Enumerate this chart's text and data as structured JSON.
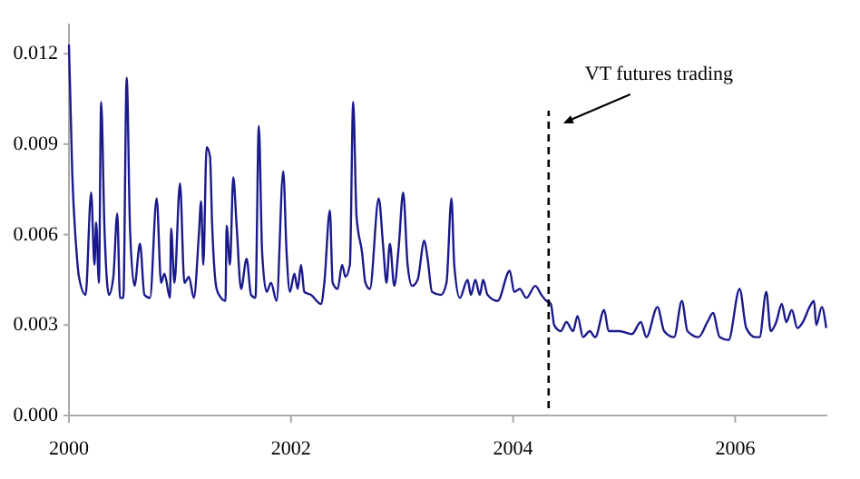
{
  "chart_data": {
    "type": "line",
    "xlim": [
      2000,
      2006.83
    ],
    "xticks": [
      2000,
      2002,
      2004,
      2006
    ],
    "ylim": [
      0,
      0.013
    ],
    "yticks": [
      {
        "value": 0,
        "label": "0.000"
      },
      {
        "value": 0.003,
        "label": "0.003"
      },
      {
        "value": 0.006,
        "label": "0.006"
      },
      {
        "value": 0.009,
        "label": "0.009"
      },
      {
        "value": 0.012,
        "label": "0.012"
      }
    ],
    "grid": false,
    "marker": "none",
    "line_style": "solid",
    "ref_lines": [
      {
        "axis": "x",
        "value": 2004.32,
        "label": "VT futures trading",
        "color": "#000000",
        "line_style": "dashed"
      }
    ],
    "series": [
      {
        "color": "#1a1a8c",
        "x": [
          2000.0,
          2000.03,
          2000.065,
          2000.09,
          2000.15,
          2000.2,
          2000.23,
          2000.245,
          2000.27,
          2000.29,
          2000.32,
          2000.36,
          2000.4,
          2000.435,
          2000.46,
          2000.49,
          2000.52,
          2000.55,
          2000.59,
          2000.64,
          2000.68,
          2000.73,
          2000.79,
          2000.83,
          2000.86,
          2000.91,
          2000.92,
          2000.95,
          2001.0,
          2001.04,
          2001.08,
          2001.125,
          2001.17,
          2001.19,
          2001.21,
          2001.24,
          2001.27,
          2001.29,
          2001.33,
          2001.37,
          2001.41,
          2001.42,
          2001.45,
          2001.48,
          2001.51,
          2001.55,
          2001.6,
          2001.64,
          2001.68,
          2001.71,
          2001.74,
          2001.78,
          2001.82,
          2001.87,
          2001.93,
          2001.96,
          2001.99,
          2002.03,
          2002.06,
          2002.09,
          2002.12,
          2002.18,
          2002.27,
          2002.3,
          2002.35,
          2002.375,
          2002.42,
          2002.46,
          2002.49,
          2002.53,
          2002.56,
          2002.59,
          2002.64,
          2002.67,
          2002.71,
          2002.79,
          2002.83,
          2002.86,
          2002.89,
          2002.93,
          2002.97,
          2003.01,
          2003.05,
          2003.09,
          2003.14,
          2003.2,
          2003.23,
          2003.27,
          2003.35,
          2003.4,
          2003.445,
          2003.47,
          2003.52,
          2003.59,
          2003.62,
          2003.66,
          2003.7,
          2003.73,
          2003.77,
          2003.86,
          2003.97,
          2004.01,
          2004.06,
          2004.12,
          2004.2,
          2004.255,
          2004.3,
          2004.34,
          2004.37,
          2004.43,
          2004.48,
          2004.54,
          2004.58,
          2004.63,
          2004.69,
          2004.74,
          2004.82,
          2004.86,
          2004.96,
          2005.07,
          2005.15,
          2005.2,
          2005.3,
          2005.36,
          2005.45,
          2005.52,
          2005.57,
          2005.67,
          2005.75,
          2005.8,
          2005.86,
          2005.94,
          2006.04,
          2006.1,
          2006.18,
          2006.22,
          2006.28,
          2006.32,
          2006.37,
          2006.42,
          2006.46,
          2006.51,
          2006.56,
          2006.61,
          2006.67,
          2006.71,
          2006.73,
          2006.78,
          2006.82
        ],
        "values": [
          0.0123,
          0.008,
          0.0056,
          0.0046,
          0.004,
          0.0074,
          0.005,
          0.0064,
          0.0044,
          0.0104,
          0.0062,
          0.004,
          0.0046,
          0.0067,
          0.0039,
          0.0039,
          0.0112,
          0.0062,
          0.0043,
          0.0057,
          0.004,
          0.0039,
          0.0072,
          0.0044,
          0.0047,
          0.0039,
          0.0062,
          0.0044,
          0.0077,
          0.0044,
          0.0046,
          0.0039,
          0.006,
          0.0071,
          0.005,
          0.0089,
          0.0086,
          0.0063,
          0.0042,
          0.0039,
          0.0038,
          0.0063,
          0.005,
          0.0079,
          0.0063,
          0.0042,
          0.0052,
          0.004,
          0.0039,
          0.0096,
          0.0054,
          0.0041,
          0.0044,
          0.0038,
          0.0081,
          0.0054,
          0.0041,
          0.0047,
          0.0042,
          0.005,
          0.0041,
          0.004,
          0.0037,
          0.0044,
          0.0068,
          0.0044,
          0.0042,
          0.005,
          0.0046,
          0.005,
          0.0104,
          0.0066,
          0.0054,
          0.0044,
          0.0042,
          0.0072,
          0.0056,
          0.0044,
          0.0057,
          0.0043,
          0.0056,
          0.0074,
          0.005,
          0.0043,
          0.0045,
          0.0058,
          0.0052,
          0.0041,
          0.004,
          0.0044,
          0.0072,
          0.005,
          0.0039,
          0.0045,
          0.004,
          0.0045,
          0.004,
          0.0045,
          0.004,
          0.0038,
          0.0048,
          0.0041,
          0.0042,
          0.0039,
          0.0043,
          0.004,
          0.0038,
          0.0037,
          0.003,
          0.0028,
          0.0031,
          0.0028,
          0.0033,
          0.0026,
          0.0028,
          0.0026,
          0.0035,
          0.0028,
          0.0028,
          0.0027,
          0.0031,
          0.0026,
          0.0036,
          0.0028,
          0.0026,
          0.0038,
          0.0028,
          0.0026,
          0.0031,
          0.0034,
          0.0026,
          0.0025,
          0.0042,
          0.0029,
          0.0026,
          0.0026,
          0.0041,
          0.0028,
          0.0031,
          0.0037,
          0.0031,
          0.0035,
          0.0029,
          0.0031,
          0.0036,
          0.0038,
          0.003,
          0.0036,
          0.0029
        ]
      }
    ]
  }
}
